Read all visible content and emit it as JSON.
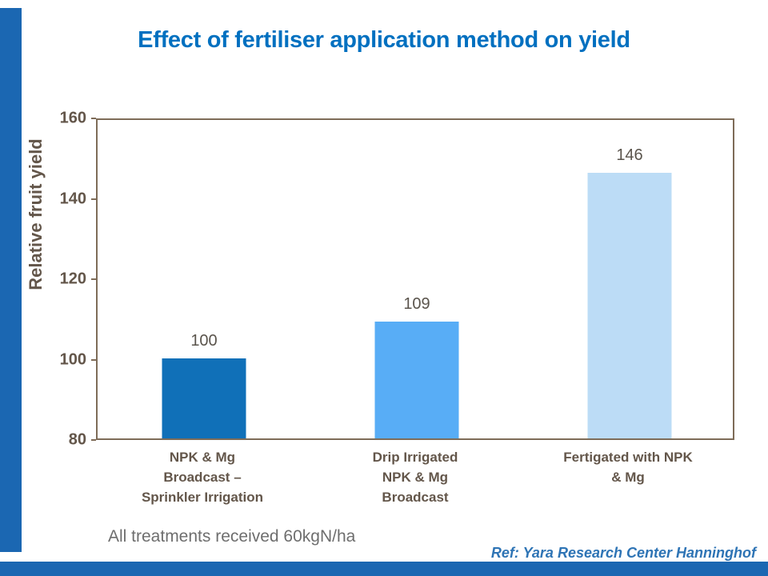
{
  "slide": {
    "title": "Effect of fertiliser application method on yield",
    "note": "All treatments received 60kgN/ha",
    "ref": "Ref: Yara Research Center Hanninghof"
  },
  "chart_data": {
    "type": "bar",
    "title": "Effect of fertiliser application method on yield",
    "categories": [
      "NPK & Mg\nBroadcast –\nSprinkler Irrigation",
      "Drip Irrigated\nNPK & Mg\nBroadcast",
      "Fertigated with NPK\n& Mg"
    ],
    "values": [
      100,
      109,
      146
    ],
    "value_labels": [
      "100",
      "109",
      "146"
    ],
    "xlabel": "",
    "ylabel": "Relative fruit yield",
    "ylim": [
      80,
      160
    ],
    "yticks": [
      80,
      100,
      120,
      140,
      160
    ],
    "grid": false,
    "legend": "none",
    "bar_colors": [
      "#1070b8",
      "#58adf6",
      "#bcdcf6"
    ]
  },
  "colors": {
    "background": "#ffffff",
    "title": "#0070c0",
    "accent_strip": "#1b67b2",
    "axis_text": "#63564a",
    "value_text": "#5a544c",
    "frame": "#7e6c58",
    "note_text": "#6e6e6e",
    "ref_text": "#2e74b5"
  }
}
